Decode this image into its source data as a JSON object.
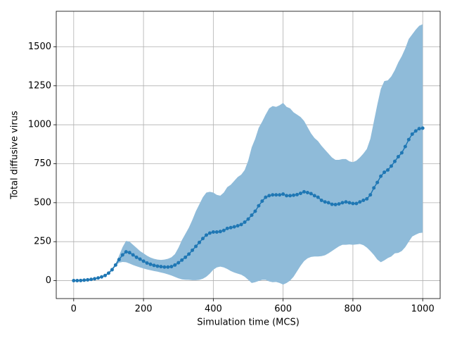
{
  "chart_data": {
    "type": "line",
    "xlabel": "Simulation time (MCS)",
    "ylabel": "Total diffusive virus",
    "x": [
      0,
      10,
      20,
      30,
      40,
      50,
      60,
      70,
      80,
      90,
      100,
      110,
      120,
      130,
      140,
      150,
      160,
      170,
      180,
      190,
      200,
      210,
      220,
      230,
      240,
      250,
      260,
      270,
      280,
      290,
      300,
      310,
      320,
      330,
      340,
      350,
      360,
      370,
      380,
      390,
      400,
      410,
      420,
      430,
      440,
      450,
      460,
      470,
      480,
      490,
      500,
      510,
      520,
      530,
      540,
      550,
      560,
      570,
      580,
      590,
      600,
      610,
      620,
      630,
      640,
      650,
      660,
      670,
      680,
      690,
      700,
      710,
      720,
      730,
      740,
      750,
      760,
      770,
      780,
      790,
      800,
      810,
      820,
      830,
      840,
      850,
      860,
      870,
      880,
      890,
      900,
      910,
      920,
      930,
      940,
      950,
      960,
      970,
      980,
      990,
      1000
    ],
    "values": [
      0,
      0,
      1,
      3,
      5,
      8,
      12,
      17,
      24,
      33,
      48,
      70,
      100,
      135,
      165,
      185,
      180,
      165,
      150,
      138,
      125,
      113,
      105,
      98,
      93,
      90,
      87,
      87,
      90,
      100,
      115,
      132,
      150,
      170,
      195,
      220,
      245,
      270,
      292,
      305,
      312,
      312,
      315,
      322,
      335,
      340,
      345,
      352,
      360,
      375,
      395,
      420,
      445,
      480,
      510,
      535,
      545,
      550,
      550,
      550,
      555,
      545,
      545,
      548,
      552,
      560,
      570,
      565,
      558,
      545,
      535,
      515,
      505,
      500,
      490,
      488,
      492,
      500,
      505,
      500,
      495,
      495,
      505,
      515,
      525,
      550,
      595,
      630,
      670,
      695,
      710,
      735,
      765,
      795,
      820,
      860,
      905,
      940,
      960,
      975,
      978
    ],
    "upper": [
      0,
      0,
      1,
      3,
      6,
      9,
      14,
      20,
      28,
      38,
      55,
      80,
      110,
      160,
      215,
      255,
      250,
      230,
      210,
      190,
      175,
      160,
      148,
      140,
      135,
      133,
      135,
      140,
      150,
      170,
      210,
      260,
      300,
      340,
      390,
      445,
      490,
      535,
      565,
      570,
      565,
      550,
      545,
      565,
      600,
      615,
      640,
      665,
      680,
      710,
      770,
      855,
      910,
      980,
      1020,
      1065,
      1105,
      1120,
      1115,
      1125,
      1140,
      1115,
      1105,
      1080,
      1065,
      1050,
      1025,
      985,
      945,
      915,
      895,
      865,
      840,
      815,
      790,
      775,
      775,
      780,
      780,
      765,
      760,
      770,
      790,
      815,
      845,
      910,
      1020,
      1130,
      1230,
      1280,
      1285,
      1310,
      1350,
      1400,
      1440,
      1490,
      1550,
      1580,
      1610,
      1635,
      1645
    ],
    "lower": [
      0,
      0,
      1,
      3,
      4,
      7,
      10,
      14,
      20,
      28,
      45,
      65,
      95,
      115,
      120,
      118,
      110,
      100,
      92,
      85,
      78,
      72,
      67,
      62,
      58,
      52,
      47,
      40,
      33,
      24,
      15,
      8,
      6,
      5,
      3,
      3,
      5,
      12,
      25,
      45,
      70,
      85,
      90,
      85,
      75,
      62,
      52,
      45,
      38,
      25,
      5,
      -15,
      -10,
      -2,
      5,
      5,
      -5,
      -10,
      -8,
      -15,
      -25,
      -15,
      0,
      25,
      60,
      95,
      125,
      143,
      152,
      155,
      155,
      157,
      163,
      175,
      190,
      205,
      220,
      230,
      230,
      232,
      230,
      232,
      235,
      228,
      212,
      190,
      165,
      135,
      118,
      130,
      145,
      155,
      175,
      178,
      190,
      215,
      250,
      283,
      295,
      305,
      308
    ],
    "color": "#1f77b4",
    "band_color": "#8fbbd9",
    "xlim": [
      -50,
      1050
    ],
    "ylim": [
      -115,
      1728
    ],
    "xticks": [
      0,
      200,
      400,
      600,
      800,
      1000
    ],
    "yticks": [
      0,
      250,
      500,
      750,
      1000,
      1250,
      1500
    ],
    "grid": true
  }
}
